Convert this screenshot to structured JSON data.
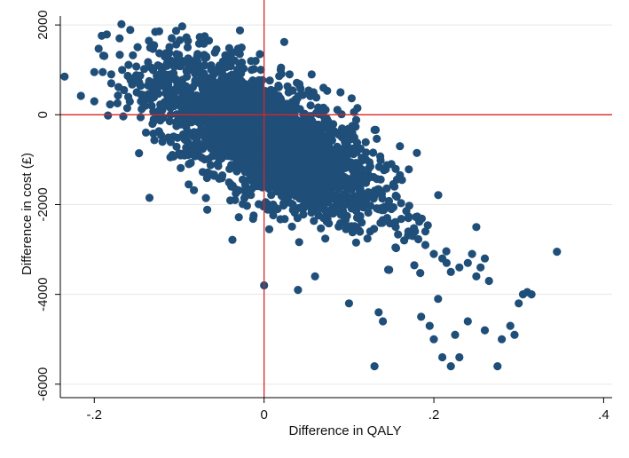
{
  "chart_data": {
    "type": "scatter",
    "title": "",
    "xlabel": "Difference in QALY",
    "ylabel": "Difference in cost (£)",
    "xlim": [
      -0.24,
      0.41
    ],
    "ylim": [
      -6300,
      2200
    ],
    "x_ticks": [
      -0.2,
      0,
      0.2,
      0.4
    ],
    "x_tick_labels": [
      "-.2",
      "0",
      ".2",
      ".4"
    ],
    "y_ticks": [
      -6000,
      -4000,
      -2000,
      0,
      2000
    ],
    "y_tick_labels": [
      "-6000",
      "-4000",
      "-2000",
      "0",
      "2000"
    ],
    "grid": "horizontal",
    "reference_lines": {
      "x": 0,
      "y": 0
    },
    "colors": {
      "points": "#1f4e79",
      "reference_lines": "#d62728",
      "grid": "#e6e6e6",
      "frame": "#000000"
    },
    "series": [
      {
        "x": [
          -0.235,
          -0.2,
          -0.19,
          -0.18,
          -0.165,
          -0.135,
          -0.133,
          -0.125,
          -0.09,
          -0.07,
          -0.065,
          -0.01,
          -0.005,
          0.0,
          0.04,
          0.06,
          0.1,
          0.13,
          0.135,
          0.14,
          0.185,
          0.195,
          0.2,
          0.205,
          0.21,
          0.22,
          0.225,
          0.23,
          0.24,
          0.26,
          0.265,
          0.275,
          0.28,
          0.29,
          0.295,
          0.3,
          0.305,
          0.31,
          0.315,
          0.345,
          0.02,
          0.03,
          0.09,
          0.11,
          0.16,
          0.18,
          0.25,
          0.12,
          0.07,
          0.15,
          -0.15,
          -0.145,
          -0.14,
          -0.12,
          -0.11,
          -0.1,
          -0.095,
          -0.085,
          -0.08,
          -0.075,
          -0.06,
          -0.055,
          -0.05,
          -0.045,
          -0.04,
          -0.035,
          -0.03,
          -0.025,
          -0.02,
          -0.015,
          0.005,
          0.01,
          0.015,
          0.025,
          0.035,
          0.045,
          0.05,
          0.055,
          0.065,
          0.075,
          0.08,
          0.085,
          0.095,
          0.105,
          0.115,
          0.125,
          0.145,
          0.155,
          0.165,
          0.17,
          0.175,
          0.19,
          0.2,
          0.21,
          0.215,
          0.22,
          0.23,
          0.24,
          0.245,
          0.25,
          0.255,
          0.26,
          -0.2,
          -0.18,
          -0.16,
          -0.13,
          -0.11,
          -0.09,
          -0.07,
          -0.05,
          -0.03,
          -0.01,
          0.01,
          0.03,
          0.05,
          0.07,
          0.09,
          0.11,
          0.13,
          0.15,
          0.17,
          0.19
        ],
        "y": [
          850,
          950,
          950,
          900,
          550,
          -1850,
          1050,
          1100,
          1500,
          1750,
          1650,
          1200,
          1350,
          -3800,
          -3900,
          -3600,
          -4200,
          -5600,
          -4400,
          -4600,
          -4500,
          -4700,
          -5000,
          -4100,
          -5400,
          -5600,
          -4900,
          -5400,
          -4600,
          -4800,
          -3700,
          -5600,
          -5000,
          -4700,
          -4900,
          -4200,
          -4000,
          -3950,
          -4000,
          -3050,
          1050,
          900,
          500,
          150,
          -700,
          -850,
          -2500,
          -1000,
          600,
          -1100,
          500,
          300,
          200,
          100,
          0,
          -200,
          400,
          600,
          300,
          200,
          0,
          -300,
          -500,
          100,
          300,
          -700,
          -400,
          -200,
          -600,
          -900,
          -1000,
          -800,
          -700,
          -1100,
          -1300,
          -1500,
          -1200,
          -1700,
          -1400,
          -1900,
          -2100,
          -1600,
          -2300,
          -2000,
          -2400,
          -2600,
          -2300,
          -2500,
          -2800,
          -2600,
          -2700,
          -2900,
          -3100,
          -3200,
          -3300,
          -3500,
          -3400,
          -3300,
          -3100,
          -3600,
          -3400,
          -3200,
          300,
          700,
          400,
          -100,
          900,
          1200,
          1100,
          800,
          600,
          400,
          200,
          -300,
          -600,
          -900,
          -1300,
          -1600,
          -1800,
          -2100,
          -2300,
          -2600
        ]
      }
    ]
  }
}
